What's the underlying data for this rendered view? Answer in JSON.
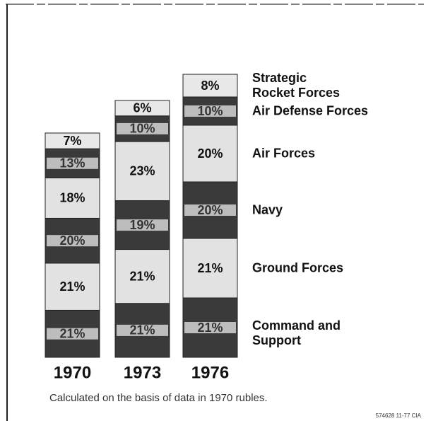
{
  "chart_data": {
    "type": "stacked-bar",
    "categories": [
      "1970",
      "1973",
      "1976"
    ],
    "series": [
      {
        "name": "Command and Support",
        "color": "#3a3a3a",
        "values": [
          21,
          21,
          21
        ],
        "value_labels": [
          "21%",
          "21%",
          "21%"
        ]
      },
      {
        "name": "Ground Forces",
        "color": "#e2e2e2",
        "values": [
          21,
          21,
          21
        ],
        "value_labels": [
          "21%",
          "21%",
          "21%"
        ]
      },
      {
        "name": "Navy",
        "color": "#3a3a3a",
        "values": [
          20,
          19,
          20
        ],
        "value_labels": [
          "20%",
          "19%",
          "20%"
        ]
      },
      {
        "name": "Air Forces",
        "color": "#e2e2e2",
        "values": [
          18,
          23,
          20
        ],
        "value_labels": [
          "18%",
          "23%",
          "20%"
        ]
      },
      {
        "name": "Air Defense Forces",
        "color": "#3a3a3a",
        "values": [
          13,
          10,
          10
        ],
        "value_labels": [
          "13%",
          "10%",
          "10%"
        ]
      },
      {
        "name": "Strategic Rocket Forces",
        "color": "#e8e8e8",
        "values": [
          7,
          6,
          8
        ],
        "value_labels": [
          "7%",
          "6%",
          "8%"
        ]
      }
    ],
    "caption": "Calculated on the basis of data in 1970 rubles.",
    "footnote": "574628 11-77 CIA"
  }
}
